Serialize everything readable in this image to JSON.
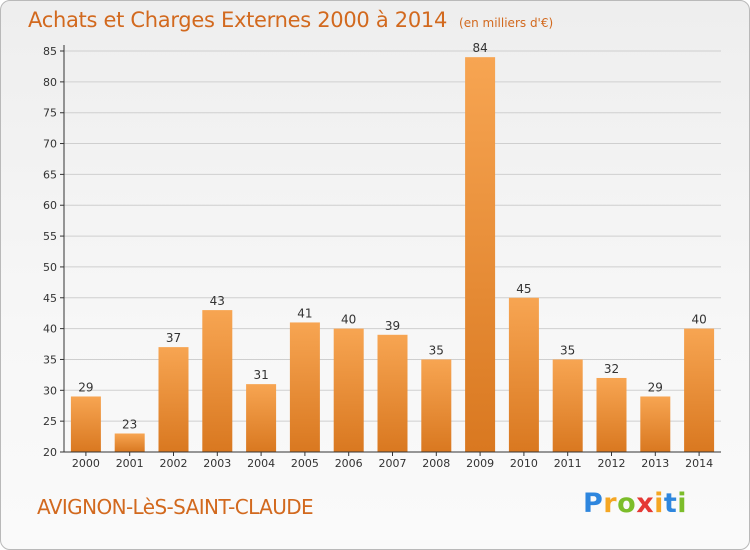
{
  "header": {
    "title": "Achats et Charges Externes 2000 à 2014",
    "unit": "(en milliers d'€)"
  },
  "footer": {
    "city": "AVIGNON-LèS-SAINT-CLAUDE",
    "logo": {
      "letters": [
        "P",
        "r",
        "o",
        "x",
        "i",
        "t",
        "i"
      ],
      "colors": [
        "#2e86de",
        "#f5a623",
        "#7cbd2a",
        "#e53935",
        "#f5a623",
        "#2e86de",
        "#7cbd2a"
      ]
    }
  },
  "colors": {
    "bar_top": "#f7a552",
    "bar_bottom": "#d97820",
    "title": "#d2691e",
    "axis": "#333333",
    "grid": "#cfcfcf"
  },
  "chart_data": {
    "type": "bar",
    "title": "Achats et Charges Externes 2000 à 2014",
    "subtitle": "(en milliers d'€)",
    "categories": [
      "2000",
      "2001",
      "2002",
      "2003",
      "2004",
      "2005",
      "2006",
      "2007",
      "2008",
      "2009",
      "2010",
      "2011",
      "2012",
      "2013",
      "2014"
    ],
    "values": [
      29,
      23,
      37,
      43,
      31,
      41,
      40,
      39,
      35,
      84,
      45,
      35,
      32,
      29,
      40
    ],
    "ylim": [
      20,
      85
    ],
    "yticks": [
      20,
      25,
      30,
      35,
      40,
      45,
      50,
      55,
      60,
      65,
      70,
      75,
      80,
      85
    ],
    "grid": true,
    "data_labels": true
  }
}
